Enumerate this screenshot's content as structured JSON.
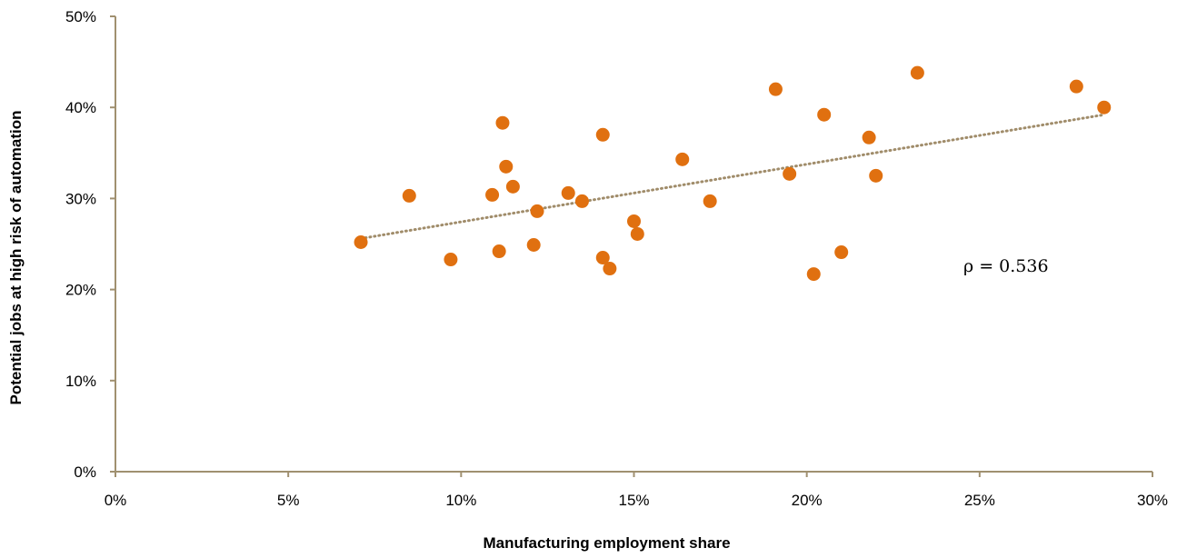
{
  "chart_data": {
    "type": "scatter",
    "title": "",
    "xlabel": "Manufacturing employment share",
    "ylabel": "Potential jobs at high risk of automation",
    "xlim": [
      0,
      0.3
    ],
    "ylim": [
      0,
      0.5
    ],
    "x_ticks": [
      0,
      0.05,
      0.1,
      0.15,
      0.2,
      0.25,
      0.3
    ],
    "x_tick_labels": [
      "0%",
      "5%",
      "10%",
      "15%",
      "20%",
      "25%",
      "30%"
    ],
    "y_ticks": [
      0,
      0.1,
      0.2,
      0.3,
      0.4,
      0.5
    ],
    "y_tick_labels": [
      "0%",
      "10%",
      "20%",
      "30%",
      "40%",
      "50%"
    ],
    "grid": false,
    "annotation": "ρ = 0.536",
    "trendline": {
      "style": "dotted",
      "x": [
        0.071,
        0.286
      ],
      "y": [
        0.256,
        0.392
      ]
    },
    "colors": {
      "points": "#e07010",
      "trendline": "#a08c6a",
      "axes": "#a09070"
    },
    "points": [
      {
        "x": 0.071,
        "y": 0.252
      },
      {
        "x": 0.085,
        "y": 0.303
      },
      {
        "x": 0.097,
        "y": 0.233
      },
      {
        "x": 0.109,
        "y": 0.304
      },
      {
        "x": 0.111,
        "y": 0.242
      },
      {
        "x": 0.112,
        "y": 0.383
      },
      {
        "x": 0.113,
        "y": 0.335
      },
      {
        "x": 0.115,
        "y": 0.313
      },
      {
        "x": 0.121,
        "y": 0.249
      },
      {
        "x": 0.122,
        "y": 0.286
      },
      {
        "x": 0.131,
        "y": 0.306
      },
      {
        "x": 0.135,
        "y": 0.297
      },
      {
        "x": 0.141,
        "y": 0.37
      },
      {
        "x": 0.141,
        "y": 0.235
      },
      {
        "x": 0.143,
        "y": 0.223
      },
      {
        "x": 0.15,
        "y": 0.275
      },
      {
        "x": 0.151,
        "y": 0.261
      },
      {
        "x": 0.164,
        "y": 0.343
      },
      {
        "x": 0.172,
        "y": 0.297
      },
      {
        "x": 0.191,
        "y": 0.42
      },
      {
        "x": 0.195,
        "y": 0.327
      },
      {
        "x": 0.202,
        "y": 0.217
      },
      {
        "x": 0.205,
        "y": 0.392
      },
      {
        "x": 0.21,
        "y": 0.241
      },
      {
        "x": 0.218,
        "y": 0.367
      },
      {
        "x": 0.22,
        "y": 0.325
      },
      {
        "x": 0.232,
        "y": 0.438
      },
      {
        "x": 0.278,
        "y": 0.423
      },
      {
        "x": 0.286,
        "y": 0.4
      }
    ]
  }
}
